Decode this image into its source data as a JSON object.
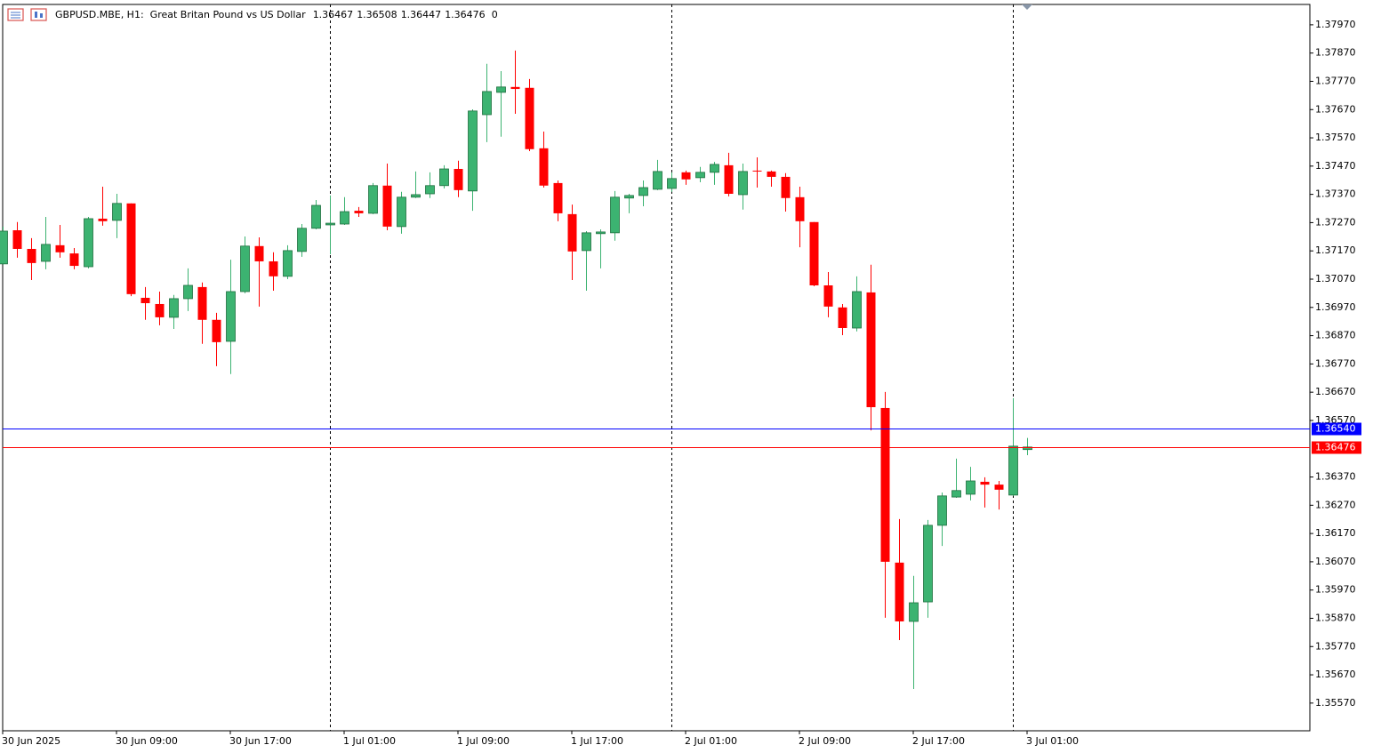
{
  "header": {
    "symbol": "GBPUSD.MBE, H1:",
    "description": "Great Britan Pound vs US Dollar",
    "info_value": 0
  },
  "chart_data": {
    "type": "candlestick",
    "categories": [
      "30 Jun 2025",
      null,
      null,
      null,
      null,
      null,
      null,
      null,
      "30 Jun 09:00",
      null,
      null,
      null,
      null,
      null,
      null,
      null,
      "30 Jun 17:00",
      null,
      null,
      null,
      null,
      null,
      null,
      null,
      "1 Jul 01:00",
      null,
      null,
      null,
      null,
      null,
      null,
      null,
      "1 Jul 09:00",
      null,
      null,
      null,
      null,
      null,
      null,
      null,
      "1 Jul 17:00",
      null,
      null,
      null,
      null,
      null,
      null,
      null,
      "2 Jul 01:00",
      null,
      null,
      null,
      null,
      null,
      null,
      null,
      "2 Jul 09:00",
      null,
      null,
      null,
      null,
      null,
      null,
      null,
      "2 Jul 17:00",
      null,
      null,
      null,
      null,
      null,
      null,
      null,
      "3 Jul 01:00"
    ],
    "open": [
      1.37124,
      1.37243,
      1.37177,
      1.37133,
      1.3719,
      1.37161,
      1.37114,
      1.37284,
      1.37278,
      1.37338,
      1.37004,
      1.36982,
      1.36935,
      1.37001,
      1.37042,
      1.36926,
      1.3685,
      1.37026,
      1.37187,
      1.37133,
      1.3708,
      1.37168,
      1.3725,
      1.37262,
      1.37265,
      1.37312,
      1.37303,
      1.37401,
      1.37256,
      1.3736,
      1.37372,
      1.37401,
      1.3746,
      1.37382,
      1.37652,
      1.37731,
      1.3775,
      1.37747,
      1.37533,
      1.3741,
      1.373,
      1.37171,
      1.37231,
      1.37234,
      1.37357,
      1.37366,
      1.37388,
      1.37391,
      1.37448,
      1.37429,
      1.37448,
      1.37473,
      1.37369,
      1.37454,
      1.37451,
      1.37432,
      1.3736,
      1.37272,
      1.37048,
      1.3697,
      1.36897,
      1.37023,
      1.36614,
      1.36067,
      1.35859,
      1.35928,
      1.36199,
      1.36299,
      1.36309,
      1.36353,
      1.36343,
      1.36306,
      1.36467
    ],
    "high": [
      1.37256,
      1.37272,
      1.37215,
      1.3729,
      1.37262,
      1.3718,
      1.3729,
      1.37397,
      1.37372,
      1.37338,
      1.37042,
      1.37026,
      1.37014,
      1.37108,
      1.37058,
      1.36951,
      1.37139,
      1.37221,
      1.37218,
      1.37165,
      1.3719,
      1.37265,
      1.3735,
      1.37366,
      1.3736,
      1.37325,
      1.3741,
      1.37479,
      1.37379,
      1.37451,
      1.37448,
      1.37473,
      1.37489,
      1.37671,
      1.37832,
      1.37806,
      1.37879,
      1.37778,
      1.37592,
      1.37419,
      1.37334,
      1.3724,
      1.37246,
      1.37382,
      1.37372,
      1.37419,
      1.37492,
      1.37448,
      1.37454,
      1.37467,
      1.37485,
      1.37517,
      1.37479,
      1.37501,
      1.37454,
      1.37445,
      1.37397,
      1.37272,
      1.37095,
      1.36982,
      1.3708,
      1.37121,
      1.36671,
      1.36221,
      1.3602,
      1.36218,
      1.36315,
      1.36435,
      1.36406,
      1.36369,
      1.36356,
      1.36649,
      1.36508
    ],
    "low": [
      1.37121,
      1.37146,
      1.37067,
      1.37105,
      1.37146,
      1.37105,
      1.37108,
      1.37259,
      1.37215,
      1.3701,
      1.36926,
      1.36907,
      1.36894,
      1.36957,
      1.36841,
      1.36762,
      1.36734,
      1.3702,
      1.36973,
      1.37029,
      1.3707,
      1.37149,
      1.37246,
      1.37158,
      1.37262,
      1.3729,
      1.373,
      1.37243,
      1.37231,
      1.37357,
      1.37357,
      1.37391,
      1.3736,
      1.37312,
      1.37555,
      1.37574,
      1.37655,
      1.37523,
      1.37394,
      1.37275,
      1.37067,
      1.37029,
      1.37108,
      1.37206,
      1.37303,
      1.37328,
      1.37385,
      1.37379,
      1.37404,
      1.37413,
      1.37404,
      1.37363,
      1.37316,
      1.37394,
      1.37397,
      1.37309,
      1.37183,
      1.37045,
      1.36935,
      1.36872,
      1.36885,
      1.36535,
      1.35872,
      1.35793,
      1.3562,
      1.35872,
      1.36126,
      1.36296,
      1.36287,
      1.36262,
      1.36255,
      1.36303,
      1.36447
    ],
    "close": [
      1.3724,
      1.37177,
      1.37127,
      1.37193,
      1.37165,
      1.37117,
      1.37284,
      1.37275,
      1.37338,
      1.37017,
      1.36985,
      1.36935,
      1.37001,
      1.37048,
      1.36926,
      1.36847,
      1.37026,
      1.37187,
      1.37133,
      1.3708,
      1.37171,
      1.3725,
      1.37331,
      1.37268,
      1.37309,
      1.37303,
      1.37401,
      1.37256,
      1.3736,
      1.37369,
      1.37401,
      1.3746,
      1.37385,
      1.37665,
      1.37734,
      1.3775,
      1.37743,
      1.3753,
      1.37401,
      1.37303,
      1.37168,
      1.37234,
      1.37237,
      1.3736,
      1.37366,
      1.37394,
      1.37451,
      1.37426,
      1.37423,
      1.37448,
      1.37476,
      1.37372,
      1.37451,
      1.37451,
      1.37432,
      1.37357,
      1.37275,
      1.37048,
      1.36973,
      1.36897,
      1.37026,
      1.36617,
      1.3607,
      1.35859,
      1.35925,
      1.36199,
      1.36303,
      1.36322,
      1.36356,
      1.36343,
      1.36325,
      1.36479,
      1.36476
    ],
    "up_color": "#3cb371",
    "down_color": "#ff0000",
    "ylim": [
      1.35472,
      1.38042
    ],
    "yticks": [
      {
        "value": 1.3557,
        "label": "1.35570"
      },
      {
        "value": 1.3567,
        "label": "1.35670"
      },
      {
        "value": 1.3577,
        "label": "1.35770"
      },
      {
        "value": 1.3587,
        "label": "1.35870"
      },
      {
        "value": 1.3597,
        "label": "1.35970"
      },
      {
        "value": 1.3607,
        "label": "1.36070"
      },
      {
        "value": 1.3617,
        "label": "1.36170"
      },
      {
        "value": 1.3627,
        "label": "1.36270"
      },
      {
        "value": 1.3637,
        "label": "1.36370"
      },
      {
        "value": 1.3657,
        "label": "1.36570"
      },
      {
        "value": 1.3667,
        "label": "1.36670"
      },
      {
        "value": 1.3677,
        "label": "1.36770"
      },
      {
        "value": 1.3687,
        "label": "1.36870"
      },
      {
        "value": 1.3697,
        "label": "1.36970"
      },
      {
        "value": 1.3707,
        "label": "1.37070"
      },
      {
        "value": 1.3717,
        "label": "1.37170"
      },
      {
        "value": 1.3727,
        "label": "1.37270"
      },
      {
        "value": 1.3737,
        "label": "1.37370"
      },
      {
        "value": 1.3747,
        "label": "1.37470"
      },
      {
        "value": 1.3757,
        "label": "1.37570"
      },
      {
        "value": 1.3767,
        "label": "1.37670"
      },
      {
        "value": 1.3777,
        "label": "1.37770"
      },
      {
        "value": 1.3787,
        "label": "1.37870"
      },
      {
        "value": 1.3797,
        "label": "1.37970"
      }
    ],
    "grid": false,
    "day_separators": [
      23,
      47,
      71
    ],
    "ask": {
      "value": 1.3654,
      "label": "1.36540"
    },
    "ask_color": "#0000ff",
    "bid": 1.36476,
    "bid_color": "#ff0000"
  }
}
